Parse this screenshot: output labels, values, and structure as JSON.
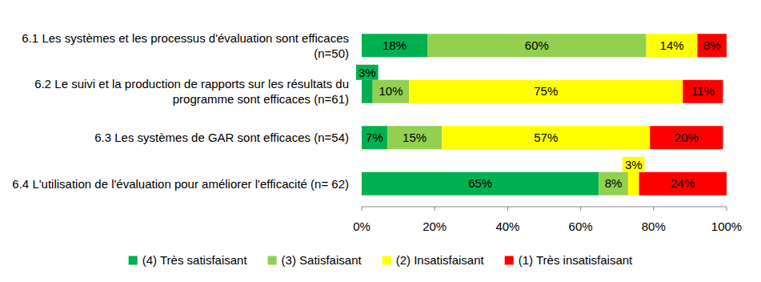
{
  "chart_data": {
    "type": "bar",
    "orientation": "horizontal",
    "stacked": true,
    "data_labels": true,
    "grid": false,
    "legend": "bottom",
    "categories": [
      "6.1 Les systèmes et les processus d'évaluation sont efficaces  (n=50)",
      "6.2 Le suivi et la production de rapports sur les résultats du programme sont efficaces (n=61)",
      "6.3 Les systèmes de GAR sont efficaces (n=54)",
      "6.4 L'utilisation de l'évaluation pour améliorer l'efficacité (n= 62)"
    ],
    "series": [
      {
        "name": "(4) Très satisfaisant",
        "color": "#00b050",
        "values": [
          18,
          3,
          7,
          65
        ],
        "value_labels": [
          "18%",
          "3%",
          "7%",
          "65%"
        ]
      },
      {
        "name": "(3) Satisfaisant",
        "color": "#92d050",
        "values": [
          60,
          10,
          15,
          8
        ],
        "value_labels": [
          "60%",
          "10%",
          "15%",
          "8%"
        ]
      },
      {
        "name": "(2) Insatisfaisant",
        "color": "#ffff00",
        "values": [
          14,
          75,
          57,
          3
        ],
        "value_labels": [
          "14%",
          "75%",
          "57%",
          "3%"
        ]
      },
      {
        "name": "(1) Très insatisfaisant",
        "color": "#ff0000",
        "values": [
          8,
          11,
          20,
          24
        ],
        "value_labels": [
          "8%",
          "11%",
          "20%",
          "24%"
        ]
      }
    ],
    "xlim": [
      0,
      100
    ],
    "xticks": [
      {
        "value": 0,
        "label": "0%"
      },
      {
        "value": 20,
        "label": "20%"
      },
      {
        "value": 40,
        "label": "40%"
      },
      {
        "value": 60,
        "label": "60%"
      },
      {
        "value": 80,
        "label": "80%"
      },
      {
        "value": 100,
        "label": "100%"
      }
    ]
  }
}
